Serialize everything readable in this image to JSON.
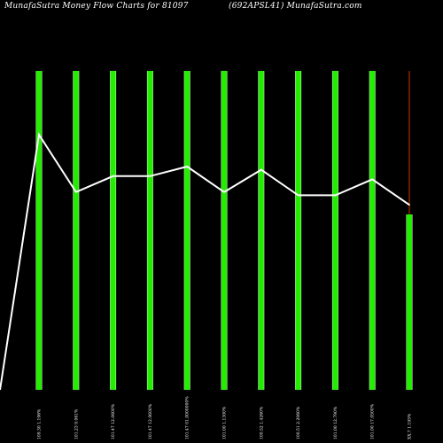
{
  "header": {
    "title_left": "MunafaSutra  Money Flow  Charts for 81097",
    "title_right": "(692APSL41) MunafaSutra.com"
  },
  "colors": {
    "background": "#000000",
    "bar": "#22ee00",
    "bar_edge": "#e8e8e8",
    "line": "#ffffff",
    "last_wick": "#cc3300"
  },
  "chart_data": {
    "type": "bar",
    "title": "MunafaSutra  Money Flow  Charts for 81097",
    "subtitle": "(692APSL41) MunafaSutra.com",
    "categories": [
      "109.30 1.196%",
      "101.23 9.061%",
      "101.47 12.0600%",
      "101.47 12.0600%",
      "101.47 01.0000000%",
      "101.00 1.1300%",
      "100.52 1.4260%",
      "100.51 2.2060%",
      "101.00 12.790%",
      "101.00 17.0500%",
      "XX.7 1.195%"
    ],
    "series": [
      {
        "type": "bar",
        "values": [
          100,
          100,
          100,
          100,
          100,
          100,
          100,
          100,
          100,
          100,
          55
        ]
      },
      {
        "type": "line",
        "values": [
          80,
          62,
          67,
          67,
          70,
          62,
          69,
          61,
          61,
          66,
          58
        ]
      }
    ],
    "line_start_value": 0,
    "last_wick_top": 100,
    "ylim": [
      0,
      100
    ],
    "grid": false,
    "legend": "none"
  }
}
